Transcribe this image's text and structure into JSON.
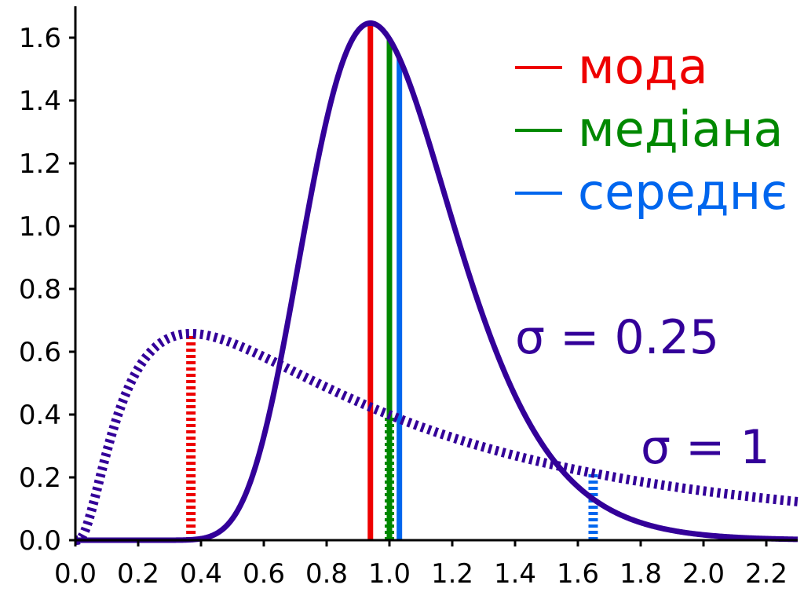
{
  "chart_data": {
    "type": "line",
    "title": "",
    "xlabel": "",
    "ylabel": "",
    "xlim": [
      0.0,
      2.3
    ],
    "ylim": [
      0.0,
      1.7
    ],
    "grid": false,
    "legend_position": "top-right",
    "x_ticks": [
      "0.0",
      "0.2",
      "0.4",
      "0.6",
      "0.8",
      "1.0",
      "1.2",
      "1.4",
      "1.6",
      "1.8",
      "2.0",
      "2.2"
    ],
    "y_ticks": [
      "0.0",
      "0.2",
      "0.4",
      "0.6",
      "0.8",
      "1.0",
      "1.2",
      "1.4",
      "1.6"
    ],
    "legend": [
      {
        "label": "мода",
        "color": "#ee0000"
      },
      {
        "label": "медіана",
        "color": "#008800"
      },
      {
        "label": "середнє",
        "color": "#0066ee"
      }
    ],
    "series": [
      {
        "distribution": "lognormal",
        "mu": 0,
        "sigma": 0.25,
        "style": "solid",
        "color": "#330099",
        "label": "σ = 0.25",
        "markers": {
          "mode": 0.9394,
          "median": 1.0,
          "mean": 1.0317
        }
      },
      {
        "distribution": "lognormal",
        "mu": 0,
        "sigma": 1,
        "style": "dashed",
        "color": "#330099",
        "label": "σ = 1",
        "markers": {
          "mode": 0.3679,
          "median": 1.0,
          "mean": 1.6487
        }
      }
    ]
  }
}
